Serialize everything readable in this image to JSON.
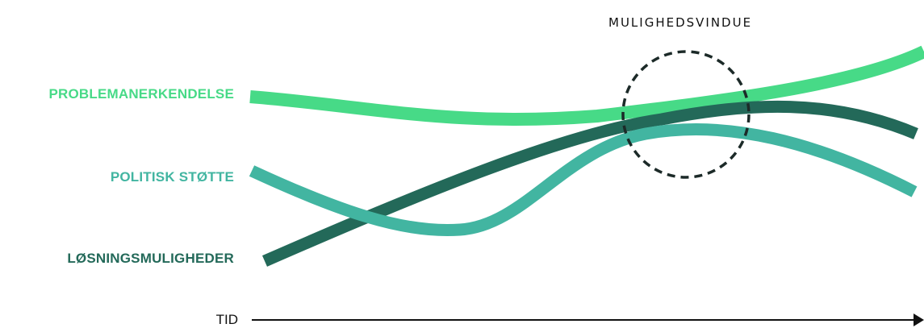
{
  "diagram": {
    "window_label": "MULIGHEDSVINDUE",
    "axis_label": "TID",
    "series": [
      {
        "id": "problem",
        "label": "PROBLEMANERKENDELSE",
        "color": "#47DA87"
      },
      {
        "id": "political",
        "label": "POLITISK STØTTE",
        "color": "#42B5A1"
      },
      {
        "id": "solutions",
        "label": "LØSNINGSMULIGHEDER",
        "color": "#236959"
      }
    ],
    "axis_color": "#111111",
    "window_circle_color": "#1c2a28"
  }
}
